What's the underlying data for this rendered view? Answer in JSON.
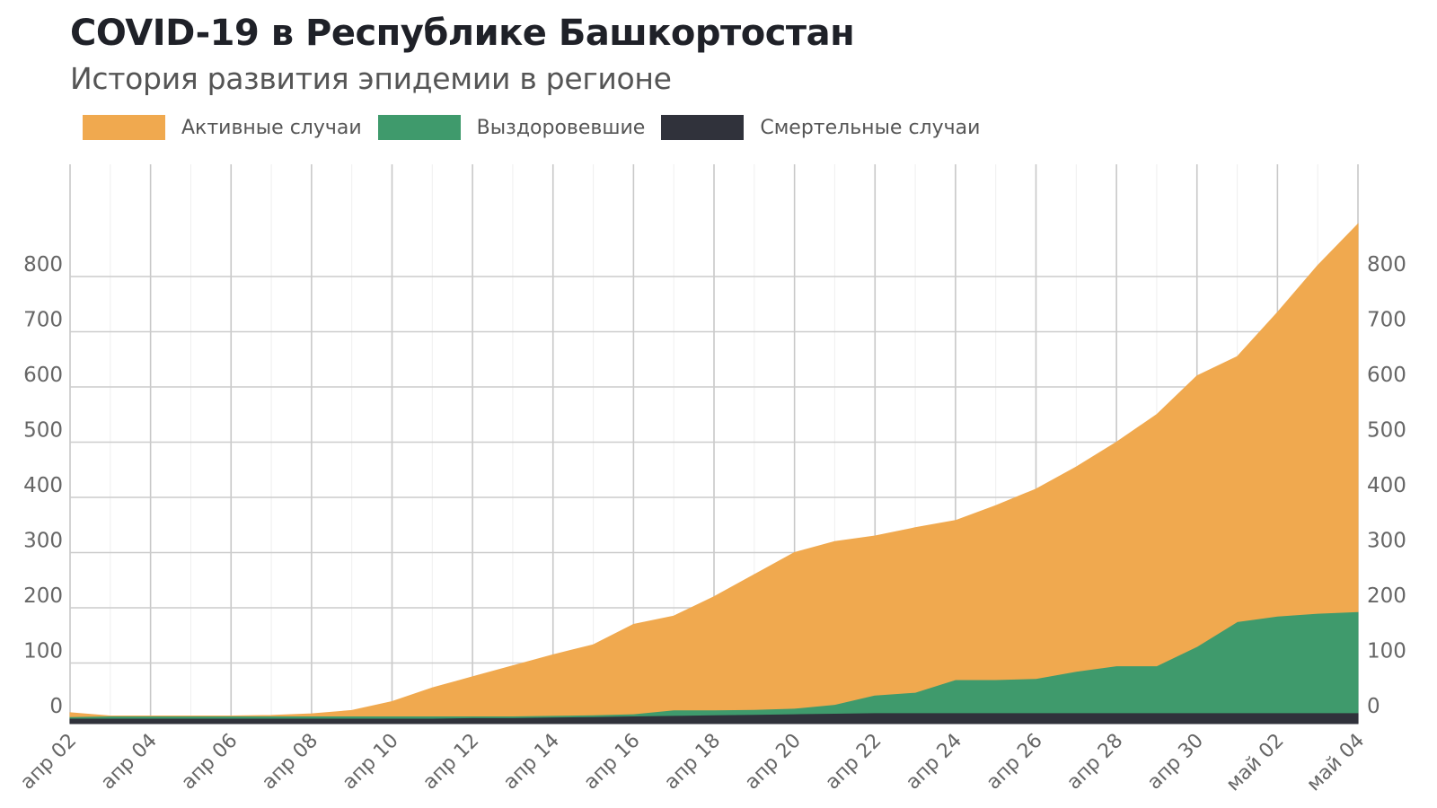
{
  "header": {
    "title": "COVID-19 в Республике Башкортостан",
    "subtitle": "История развития эпидемии в регионе"
  },
  "legend": [
    {
      "label": "Активные случаи",
      "color": "#f0a94f"
    },
    {
      "label": "Выздоровевшие",
      "color": "#3f9a6c"
    },
    {
      "label": "Смертельные случаи",
      "color": "#30323b"
    }
  ],
  "chart_data": {
    "type": "area",
    "stacked": true,
    "title": "COVID-19 в Республике Башкортостан",
    "subtitle": "История развития эпидемии в регионе",
    "xlabel": "",
    "ylabel": "",
    "ylim": [
      0,
      900
    ],
    "yticks": [
      0,
      100,
      200,
      300,
      400,
      500,
      600,
      700,
      800
    ],
    "grid": true,
    "legend_position": "top",
    "x": [
      "апр 02",
      "апр 03",
      "апр 04",
      "апр 05",
      "апр 06",
      "апр 07",
      "апр 08",
      "апр 09",
      "апр 10",
      "апр 11",
      "апр 12",
      "апр 13",
      "апр 14",
      "апр 15",
      "апр 16",
      "апр 17",
      "апр 18",
      "апр 19",
      "апр 20",
      "апр 21",
      "апр 22",
      "апр 23",
      "апр 24",
      "апр 25",
      "апр 26",
      "апр 27",
      "апр 28",
      "апр 29",
      "апр 30",
      "май 01",
      "май 02",
      "май 03",
      "май 04"
    ],
    "xtick_labels": [
      "апр 02",
      "апр 04",
      "апр 06",
      "апр 08",
      "апр 10",
      "апр 12",
      "апр 14",
      "апр 16",
      "апр 18",
      "апр 20",
      "апр 22",
      "апр 24",
      "апр 26",
      "апр 28",
      "апр 30",
      "май 02",
      "май 04"
    ],
    "series": [
      {
        "name": "Смертельные случаи",
        "color": "#30323b",
        "values": [
          0,
          0,
          0,
          0,
          0,
          0,
          0,
          0,
          0,
          0,
          1,
          1,
          2,
          3,
          4,
          5,
          6,
          7,
          8,
          9,
          10,
          10,
          10,
          10,
          10,
          10,
          10,
          10,
          10,
          10,
          10,
          10,
          10
        ]
      },
      {
        "name": "Выздоровевшие",
        "color": "#3f9a6c",
        "values": [
          3,
          4,
          4,
          4,
          4,
          4,
          4,
          4,
          4,
          4,
          3,
          3,
          3,
          3,
          4,
          10,
          9,
          9,
          10,
          16,
          32,
          37,
          60,
          60,
          62,
          75,
          85,
          85,
          120,
          165,
          175,
          180,
          183
        ]
      },
      {
        "name": "Активные случаи",
        "color": "#f0a94f",
        "values": [
          7,
          0,
          0,
          0,
          0,
          1,
          4,
          10,
          26,
          51,
          71,
          91,
          110,
          127,
          162,
          170,
          205,
          244,
          282,
          295,
          288,
          298,
          288,
          315,
          343,
          370,
          405,
          455,
          490,
          480,
          550,
          630,
          702
        ]
      }
    ]
  }
}
